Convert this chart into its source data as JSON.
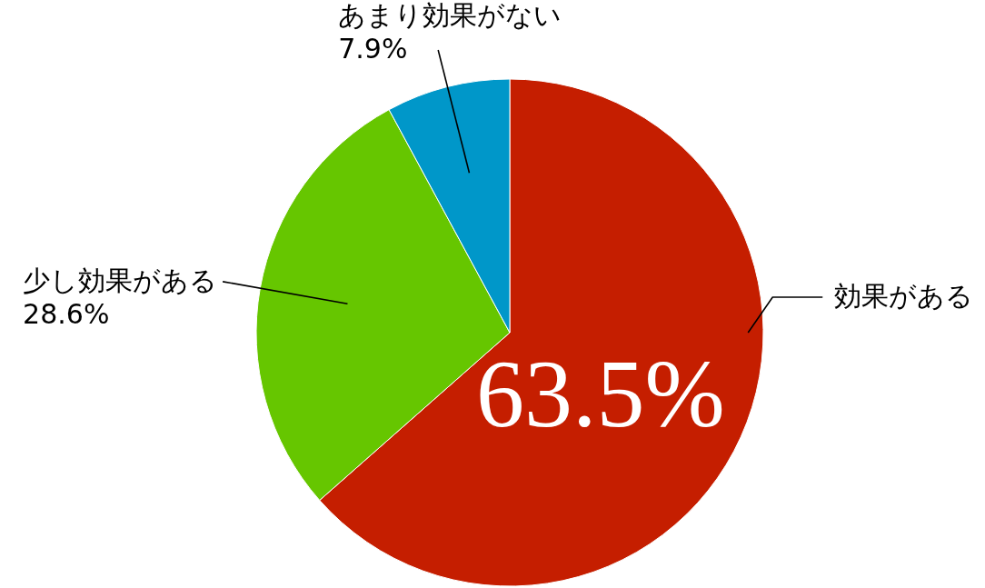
{
  "chart_data": {
    "type": "pie",
    "categories": [
      "効果がある",
      "少し効果がある",
      "あまり効果がない"
    ],
    "values": [
      63.5,
      28.6,
      7.9
    ],
    "colors": [
      "#c51e00",
      "#66c600",
      "#0097c9"
    ],
    "value_labels": [
      "63.5%",
      "28.6%",
      "7.9%"
    ]
  }
}
